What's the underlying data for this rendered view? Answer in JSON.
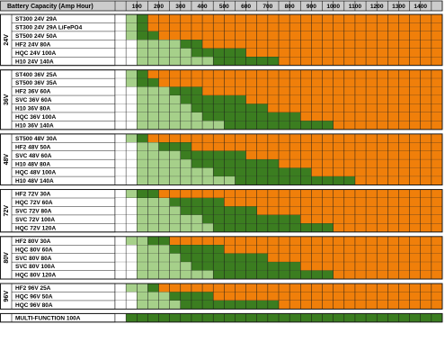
{
  "chart_data": {
    "type": "heatmap",
    "header_title": "Battery Capacity (Amp Hour)",
    "x_ticks": [
      "100",
      "200",
      "300",
      "400",
      "500",
      "600",
      "700",
      "800",
      "900",
      "1000",
      "1100",
      "1200",
      "1300",
      "1400"
    ],
    "x_range": [
      0,
      1500
    ],
    "cell_step": 50,
    "legend": {
      "0": "white",
      "1": "light green",
      "2": "dark green",
      "3": "orange"
    },
    "colors": {
      "white": "#ffffff",
      "light_green": "#a6d08a",
      "dark_green": "#3b7d20",
      "orange": "#f07f0a",
      "grid": "#1a1a1a",
      "header_bg": "#cccccc",
      "label_bg": "#ffffff"
    },
    "groups": [
      {
        "voltage": "24V",
        "rows": [
          {
            "label": "ST300 24V 29A",
            "levels": [
              [
                0,
                50,
                0
              ],
              [
                50,
                100,
                1
              ],
              [
                100,
                150,
                2
              ],
              [
                150,
                1500,
                3
              ]
            ]
          },
          {
            "label": "ST300 24V 29A LiFePO4",
            "levels": [
              [
                0,
                50,
                0
              ],
              [
                50,
                100,
                1
              ],
              [
                100,
                150,
                2
              ],
              [
                150,
                1500,
                3
              ]
            ]
          },
          {
            "label": "ST500 24V 50A",
            "levels": [
              [
                0,
                50,
                0
              ],
              [
                50,
                100,
                1
              ],
              [
                100,
                200,
                2
              ],
              [
                200,
                1500,
                3
              ]
            ]
          },
          {
            "label": "HF2 24V 80A",
            "levels": [
              [
                0,
                100,
                0
              ],
              [
                100,
                300,
                1
              ],
              [
                300,
                400,
                2
              ],
              [
                400,
                1500,
                3
              ]
            ]
          },
          {
            "label": "HQC 24V 100A",
            "levels": [
              [
                0,
                100,
                0
              ],
              [
                100,
                350,
                1
              ],
              [
                350,
                600,
                2
              ],
              [
                600,
                1500,
                3
              ]
            ]
          },
          {
            "label": "H10 24V 140A",
            "levels": [
              [
                0,
                100,
                0
              ],
              [
                100,
                450,
                1
              ],
              [
                450,
                750,
                2
              ],
              [
                750,
                1500,
                3
              ]
            ]
          }
        ]
      },
      {
        "voltage": "36V",
        "rows": [
          {
            "label": "ST400 36V 25A",
            "levels": [
              [
                0,
                50,
                0
              ],
              [
                50,
                100,
                1
              ],
              [
                100,
                150,
                2
              ],
              [
                150,
                1500,
                3
              ]
            ]
          },
          {
            "label": "ST500 36V 35A",
            "levels": [
              [
                0,
                50,
                0
              ],
              [
                50,
                100,
                1
              ],
              [
                100,
                200,
                2
              ],
              [
                200,
                1500,
                3
              ]
            ]
          },
          {
            "label": "HF2 36V 60A",
            "levels": [
              [
                0,
                100,
                0
              ],
              [
                100,
                250,
                1
              ],
              [
                250,
                400,
                2
              ],
              [
                400,
                1500,
                3
              ]
            ]
          },
          {
            "label": "SVC 36V 60A",
            "levels": [
              [
                0,
                100,
                0
              ],
              [
                100,
                300,
                1
              ],
              [
                300,
                600,
                2
              ],
              [
                600,
                1500,
                3
              ]
            ]
          },
          {
            "label": "H10 36V 80A",
            "levels": [
              [
                0,
                100,
                0
              ],
              [
                100,
                350,
                1
              ],
              [
                350,
                700,
                2
              ],
              [
                700,
                1500,
                3
              ]
            ]
          },
          {
            "label": "HQC 36V 100A",
            "levels": [
              [
                0,
                100,
                0
              ],
              [
                100,
                400,
                1
              ],
              [
                400,
                850,
                2
              ],
              [
                850,
                1500,
                3
              ]
            ]
          },
          {
            "label": "H10 36V 140A",
            "levels": [
              [
                0,
                100,
                0
              ],
              [
                100,
                500,
                1
              ],
              [
                500,
                1000,
                2
              ],
              [
                1000,
                1500,
                3
              ]
            ]
          }
        ]
      },
      {
        "voltage": "48V",
        "rows": [
          {
            "label": "ST500 48V 30A",
            "levels": [
              [
                0,
                50,
                0
              ],
              [
                50,
                100,
                1
              ],
              [
                100,
                150,
                2
              ],
              [
                150,
                1500,
                3
              ]
            ]
          },
          {
            "label": "HF2 48V 50A",
            "levels": [
              [
                0,
                100,
                0
              ],
              [
                100,
                200,
                1
              ],
              [
                200,
                350,
                2
              ],
              [
                350,
                1500,
                3
              ]
            ]
          },
          {
            "label": "SVC 48V 60A",
            "levels": [
              [
                0,
                100,
                0
              ],
              [
                100,
                300,
                1
              ],
              [
                300,
                600,
                2
              ],
              [
                600,
                1500,
                3
              ]
            ]
          },
          {
            "label": "H10 48V 80A",
            "levels": [
              [
                0,
                100,
                0
              ],
              [
                100,
                350,
                1
              ],
              [
                350,
                750,
                2
              ],
              [
                750,
                1500,
                3
              ]
            ]
          },
          {
            "label": "HQC 48V 100A",
            "levels": [
              [
                0,
                100,
                0
              ],
              [
                100,
                450,
                1
              ],
              [
                450,
                900,
                2
              ],
              [
                900,
                1500,
                3
              ]
            ]
          },
          {
            "label": "H10 48V 140A",
            "levels": [
              [
                0,
                100,
                0
              ],
              [
                100,
                550,
                1
              ],
              [
                550,
                1100,
                2
              ],
              [
                1100,
                1500,
                3
              ]
            ]
          }
        ]
      },
      {
        "voltage": "72V",
        "rows": [
          {
            "label": "HF2 72V 30A",
            "levels": [
              [
                0,
                50,
                0
              ],
              [
                50,
                100,
                1
              ],
              [
                100,
                200,
                2
              ],
              [
                200,
                1500,
                3
              ]
            ]
          },
          {
            "label": "HQC 72V 60A",
            "levels": [
              [
                0,
                100,
                0
              ],
              [
                100,
                250,
                1
              ],
              [
                250,
                500,
                2
              ],
              [
                500,
                1500,
                3
              ]
            ]
          },
          {
            "label": "SVC 72V 80A",
            "levels": [
              [
                0,
                100,
                0
              ],
              [
                100,
                300,
                1
              ],
              [
                300,
                650,
                2
              ],
              [
                650,
                1500,
                3
              ]
            ]
          },
          {
            "label": "SVC 72V 100A",
            "levels": [
              [
                0,
                100,
                0
              ],
              [
                100,
                400,
                1
              ],
              [
                400,
                850,
                2
              ],
              [
                850,
                1500,
                3
              ]
            ]
          },
          {
            "label": "HQC 72V 120A",
            "levels": [
              [
                0,
                100,
                0
              ],
              [
                100,
                450,
                1
              ],
              [
                450,
                1000,
                2
              ],
              [
                1000,
                1500,
                3
              ]
            ]
          }
        ]
      },
      {
        "voltage": "80V",
        "rows": [
          {
            "label": "HF2 80V 30A",
            "levels": [
              [
                0,
                50,
                0
              ],
              [
                50,
                150,
                1
              ],
              [
                150,
                250,
                2
              ],
              [
                250,
                1500,
                3
              ]
            ]
          },
          {
            "label": "HQC 80V 60A",
            "levels": [
              [
                0,
                100,
                0
              ],
              [
                100,
                250,
                1
              ],
              [
                250,
                500,
                2
              ],
              [
                500,
                1500,
                3
              ]
            ]
          },
          {
            "label": "SVC 80V 80A",
            "levels": [
              [
                0,
                100,
                0
              ],
              [
                100,
                300,
                1
              ],
              [
                300,
                700,
                2
              ],
              [
                700,
                1500,
                3
              ]
            ]
          },
          {
            "label": "SVC 80V 100A",
            "levels": [
              [
                0,
                100,
                0
              ],
              [
                100,
                350,
                1
              ],
              [
                350,
                850,
                2
              ],
              [
                850,
                1500,
                3
              ]
            ]
          },
          {
            "label": "HQC 80V 120A",
            "levels": [
              [
                0,
                100,
                0
              ],
              [
                100,
                450,
                1
              ],
              [
                450,
                1000,
                2
              ],
              [
                1000,
                1500,
                3
              ]
            ]
          }
        ]
      },
      {
        "voltage": "96V",
        "rows": [
          {
            "label": "HF2 96V 25A",
            "levels": [
              [
                0,
                50,
                0
              ],
              [
                50,
                150,
                1
              ],
              [
                150,
                200,
                2
              ],
              [
                200,
                1500,
                3
              ]
            ]
          },
          {
            "label": "HQC 96V 50A",
            "levels": [
              [
                0,
                100,
                0
              ],
              [
                100,
                250,
                1
              ],
              [
                250,
                450,
                2
              ],
              [
                450,
                1500,
                3
              ]
            ]
          },
          {
            "label": "HQC 96V 80A",
            "levels": [
              [
                0,
                100,
                0
              ],
              [
                100,
                300,
                1
              ],
              [
                300,
                750,
                2
              ],
              [
                750,
                1500,
                3
              ]
            ]
          }
        ]
      },
      {
        "voltage": "",
        "rows": [
          {
            "label": "MULTI-FUNCTION 100A",
            "levels": [
              [
                0,
                50,
                0
              ],
              [
                50,
                1500,
                2
              ]
            ]
          }
        ]
      }
    ]
  }
}
